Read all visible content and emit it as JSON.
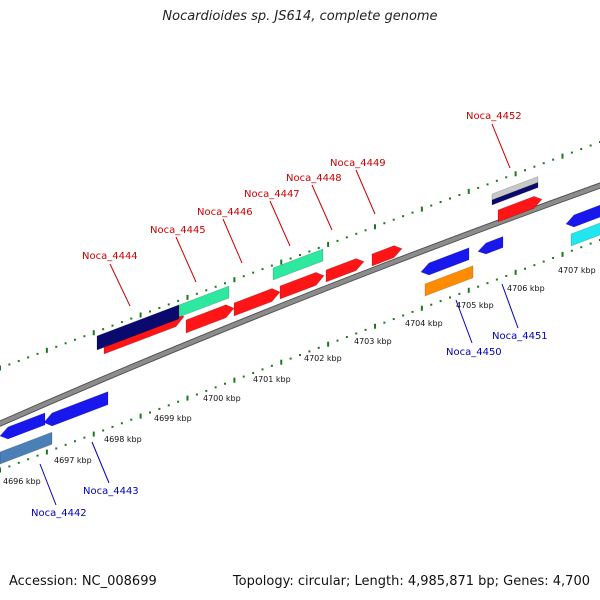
{
  "title": "Nocardioides sp. JS614, complete genome",
  "accession": "Accession: NC_008699",
  "summary": "Topology: circular; Length: 4,985,871 bp; Genes: 4,700",
  "colors": {
    "backbone": "#8c8c8c",
    "tick": "#1a7a1a",
    "label_forward": "#cc0000",
    "label_reverse": "#0000bb",
    "red": "#ff1515",
    "navy": "#0a0a6e",
    "teal": "#2ee8a0",
    "blue": "#1818ee",
    "steelblue": "#4a7fb8",
    "orange": "#ff8c00",
    "cyan": "#22e6ee",
    "grey": "#c8c8c8"
  },
  "scale_labels": [
    "4696 kbp",
    "4697 kbp",
    "4698 kbp",
    "4699 kbp",
    "4700 kbp",
    "4701 kbp",
    "4702 kbp",
    "4703 kbp",
    "4704 kbp",
    "4705 kbp",
    "4706 kbp",
    "4707 kbp"
  ],
  "gene_labels_forward": [
    "Noca_4444",
    "Noca_4445",
    "Noca_4446",
    "Noca_4447",
    "Noca_4448",
    "Noca_4449",
    "Noca_4452"
  ],
  "gene_labels_reverse": [
    "Noca_4442",
    "Noca_4443",
    "Noca_4450",
    "Noca_4451"
  ]
}
